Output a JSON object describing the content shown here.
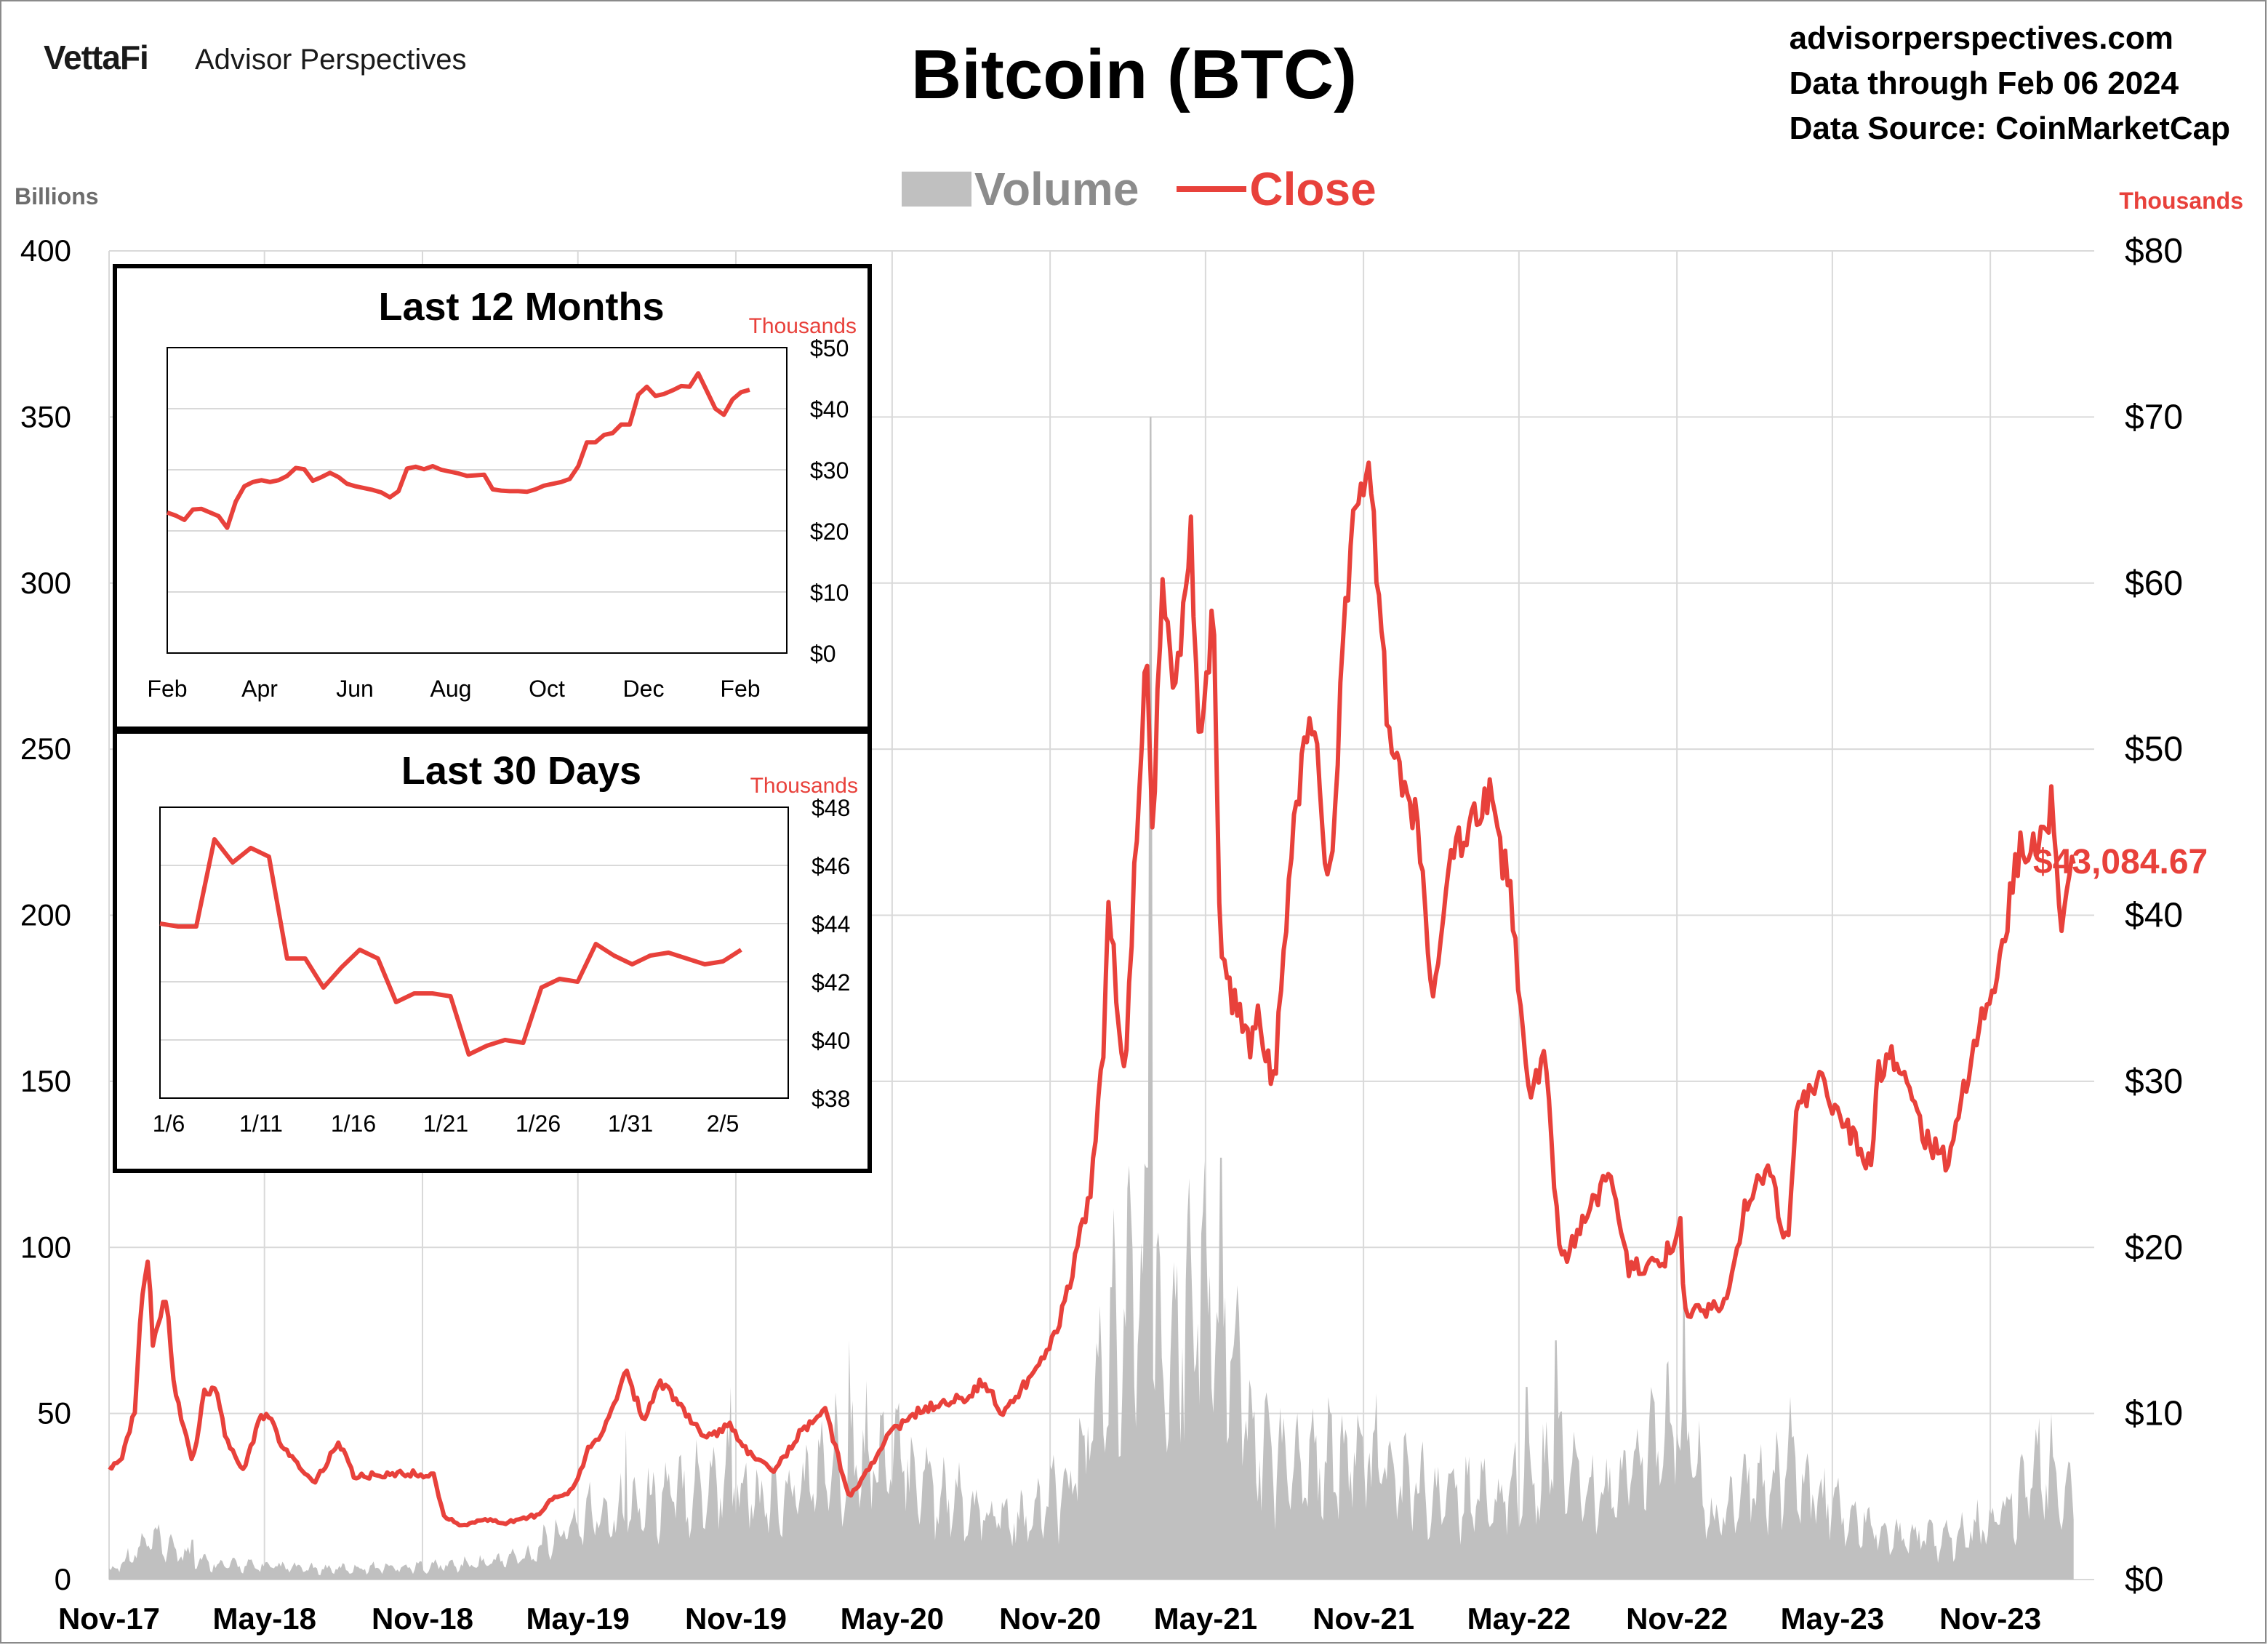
{
  "header": {
    "brand_logo": "VettaFi",
    "brand_name": "Advisor Perspectives",
    "title": "Bitcoin (BTC)",
    "source_lines": [
      "advisorperspectives.com",
      "Data through Feb 06 2024",
      "Data Source: CoinMarketCap"
    ]
  },
  "legend": {
    "volume_label": "Volume",
    "close_label": "Close"
  },
  "last_value_label": "$43,084.67",
  "colors": {
    "close": "#e8413b",
    "volume": "#c0c0c0",
    "grid": "#d9d9d9",
    "axis_text": "#000000"
  },
  "chart_data": [
    {
      "type": "area+line",
      "title": "Bitcoin (BTC)",
      "x_tick_labels": [
        "Nov-17",
        "May-18",
        "Nov-18",
        "May-19",
        "Nov-19",
        "May-20",
        "Nov-20",
        "May-21",
        "Nov-21",
        "May-22",
        "Nov-22",
        "May-23",
        "Nov-23"
      ],
      "x_start": "2017-11-01",
      "x_end": "2024-03-01",
      "left_axis": {
        "unit": "Billions",
        "ylim": [
          0,
          400
        ],
        "ticks": [
          "0",
          "50",
          "100",
          "150",
          "200",
          "250",
          "300",
          "350",
          "400"
        ]
      },
      "right_axis": {
        "unit": "Thousands",
        "ylim": [
          0,
          80
        ],
        "ticks": [
          "$0",
          "$10",
          "$20",
          "$30",
          "$40",
          "$50",
          "$60",
          "$70",
          "$80"
        ]
      },
      "series": [
        {
          "name": "Close",
          "axis": "right",
          "points": [
            [
              "2017-11-01",
              6.7
            ],
            [
              "2017-11-15",
              7.3
            ],
            [
              "2017-12-01",
              10.2
            ],
            [
              "2017-12-08",
              16.0
            ],
            [
              "2017-12-17",
              19.3
            ],
            [
              "2017-12-22",
              14.0
            ],
            [
              "2018-01-06",
              17.2
            ],
            [
              "2018-01-17",
              11.3
            ],
            [
              "2018-02-06",
              6.9
            ],
            [
              "2018-02-20",
              11.2
            ],
            [
              "2018-03-05",
              11.5
            ],
            [
              "2018-03-18",
              8.3
            ],
            [
              "2018-04-06",
              6.6
            ],
            [
              "2018-04-25",
              9.6
            ],
            [
              "2018-05-05",
              9.8
            ],
            [
              "2018-05-28",
              7.5
            ],
            [
              "2018-06-28",
              5.9
            ],
            [
              "2018-07-27",
              8.2
            ],
            [
              "2018-08-14",
              6.2
            ],
            [
              "2018-09-10",
              6.3
            ],
            [
              "2018-10-15",
              6.4
            ],
            [
              "2018-11-14",
              6.3
            ],
            [
              "2018-11-25",
              3.9
            ],
            [
              "2018-12-15",
              3.2
            ],
            [
              "2019-01-10",
              3.6
            ],
            [
              "2019-02-07",
              3.4
            ],
            [
              "2019-03-15",
              3.9
            ],
            [
              "2019-04-02",
              4.9
            ],
            [
              "2019-04-25",
              5.4
            ],
            [
              "2019-05-14",
              8.0
            ],
            [
              "2019-05-30",
              8.6
            ],
            [
              "2019-06-26",
              12.9
            ],
            [
              "2019-07-16",
              9.4
            ],
            [
              "2019-08-06",
              11.8
            ],
            [
              "2019-09-24",
              8.6
            ],
            [
              "2019-10-26",
              9.2
            ],
            [
              "2019-11-22",
              7.2
            ],
            [
              "2019-12-17",
              6.6
            ],
            [
              "2020-01-14",
              8.8
            ],
            [
              "2020-02-13",
              10.3
            ],
            [
              "2020-03-12",
              4.9
            ],
            [
              "2020-04-29",
              8.8
            ],
            [
              "2020-06-01",
              10.2
            ],
            [
              "2020-07-27",
              11.0
            ],
            [
              "2020-08-17",
              12.0
            ],
            [
              "2020-09-05",
              10.0
            ],
            [
              "2020-10-21",
              12.9
            ],
            [
              "2020-11-15",
              16.0
            ],
            [
              "2020-12-01",
              19.7
            ],
            [
              "2020-12-17",
              23.0
            ],
            [
              "2021-01-03",
              32.0
            ],
            [
              "2021-01-08",
              40.7
            ],
            [
              "2021-01-27",
              30.4
            ],
            [
              "2021-02-21",
              57.0
            ],
            [
              "2021-02-28",
              45.0
            ],
            [
              "2021-03-13",
              61.2
            ],
            [
              "2021-03-25",
              51.7
            ],
            [
              "2021-04-14",
              63.5
            ],
            [
              "2021-04-25",
              49.0
            ],
            [
              "2021-05-10",
              58.0
            ],
            [
              "2021-05-19",
              37.0
            ],
            [
              "2021-06-22",
              32.0
            ],
            [
              "2021-07-01",
              34.0
            ],
            [
              "2021-07-20",
              29.8
            ],
            [
              "2021-08-14",
              47.0
            ],
            [
              "2021-09-06",
              52.7
            ],
            [
              "2021-09-21",
              40.7
            ],
            [
              "2021-10-20",
              66.0
            ],
            [
              "2021-11-08",
              67.6
            ],
            [
              "2021-11-26",
              53.6
            ],
            [
              "2021-12-04",
              49.0
            ],
            [
              "2021-12-31",
              46.3
            ],
            [
              "2022-01-22",
              35.0
            ],
            [
              "2022-02-10",
              44.0
            ],
            [
              "2022-03-28",
              47.1
            ],
            [
              "2022-04-20",
              41.5
            ],
            [
              "2022-05-12",
              29.0
            ],
            [
              "2022-05-31",
              31.8
            ],
            [
              "2022-06-18",
              19.0
            ],
            [
              "2022-07-10",
              21.0
            ],
            [
              "2022-08-14",
              24.3
            ],
            [
              "2022-09-06",
              18.8
            ],
            [
              "2022-10-15",
              19.1
            ],
            [
              "2022-11-05",
              21.3
            ],
            [
              "2022-11-10",
              16.0
            ],
            [
              "2022-12-29",
              16.6
            ],
            [
              "2023-01-21",
              22.7
            ],
            [
              "2023-02-16",
              24.6
            ],
            [
              "2023-03-10",
              20.1
            ],
            [
              "2023-03-20",
              28.0
            ],
            [
              "2023-04-14",
              30.5
            ],
            [
              "2023-05-10",
              27.6
            ],
            [
              "2023-06-15",
              25.1
            ],
            [
              "2023-06-23",
              30.7
            ],
            [
              "2023-07-13",
              31.4
            ],
            [
              "2023-08-17",
              26.6
            ],
            [
              "2023-09-11",
              25.2
            ],
            [
              "2023-10-24",
              33.9
            ],
            [
              "2023-11-09",
              36.7
            ],
            [
              "2023-12-05",
              44.0
            ],
            [
              "2024-01-02",
              45.0
            ],
            [
              "2024-01-11",
              46.6
            ],
            [
              "2024-01-22",
              39.5
            ],
            [
              "2024-02-06",
              43.1
            ]
          ]
        },
        {
          "name": "Volume",
          "axis": "left",
          "points": [
            [
              "2017-11-01",
              3
            ],
            [
              "2017-12-20",
              15
            ],
            [
              "2018-03-01",
              6
            ],
            [
              "2018-07-01",
              4
            ],
            [
              "2018-11-01",
              5
            ],
            [
              "2019-01-01",
              6
            ],
            [
              "2019-03-01",
              9
            ],
            [
              "2019-05-15",
              25
            ],
            [
              "2019-07-01",
              28
            ],
            [
              "2019-10-25",
              40
            ],
            [
              "2019-12-01",
              28
            ],
            [
              "2020-01-15",
              35
            ],
            [
              "2020-03-12",
              50
            ],
            [
              "2020-05-15",
              45
            ],
            [
              "2020-08-01",
              25
            ],
            [
              "2020-10-01",
              22
            ],
            [
              "2020-12-01",
              40
            ],
            [
              "2021-01-10",
              90
            ],
            [
              "2021-02-20",
              115
            ],
            [
              "2021-03-20",
              70
            ],
            [
              "2021-04-18",
              120
            ],
            [
              "2021-05-15",
              100
            ],
            [
              "2021-07-01",
              50
            ],
            [
              "2021-09-01",
              45
            ],
            [
              "2021-11-10",
              48
            ],
            [
              "2022-01-01",
              35
            ],
            [
              "2022-04-01",
              30
            ],
            [
              "2022-06-15",
              45
            ],
            [
              "2022-08-01",
              30
            ],
            [
              "2022-11-10",
              60
            ],
            [
              "2022-12-15",
              20
            ],
            [
              "2023-01-20",
              35
            ],
            [
              "2023-03-15",
              40
            ],
            [
              "2023-05-01",
              28
            ],
            [
              "2023-07-01",
              18
            ],
            [
              "2023-09-01",
              15
            ],
            [
              "2023-11-01",
              22
            ],
            [
              "2024-01-11",
              45
            ],
            [
              "2024-02-06",
              26
            ]
          ],
          "spikes": [
            [
              "2018-02-06",
              12
            ],
            [
              "2019-06-26",
              45
            ],
            [
              "2019-10-26",
              58
            ],
            [
              "2020-03-12",
              72
            ],
            [
              "2021-01-11",
              88
            ],
            [
              "2021-02-22",
              124
            ],
            [
              "2021-02-26",
              350
            ],
            [
              "2021-05-19",
              127
            ],
            [
              "2022-05-10",
              58
            ],
            [
              "2022-06-13",
              72
            ],
            [
              "2022-11-09",
              103
            ],
            [
              "2023-03-13",
              55
            ],
            [
              "2024-01-11",
              50
            ]
          ]
        }
      ]
    },
    {
      "type": "line",
      "title": "Last 12 Months",
      "axis_unit": "Thousands",
      "x_tick_labels": [
        "Feb",
        "Apr",
        "Jun",
        "Aug",
        "Oct",
        "Dec",
        "Feb"
      ],
      "ylim": [
        0,
        50
      ],
      "y_ticks": [
        "$0",
        "$10",
        "$20",
        "$30",
        "$40",
        "$50"
      ],
      "series": [
        {
          "name": "Close",
          "values": [
            23.0,
            22.5,
            21.8,
            23.5,
            23.6,
            23.0,
            22.4,
            20.5,
            24.8,
            27.3,
            28.0,
            28.3,
            28.0,
            28.3,
            29.0,
            30.3,
            30.1,
            28.2,
            28.8,
            29.5,
            28.8,
            27.7,
            27.3,
            27.0,
            26.7,
            26.3,
            25.5,
            26.5,
            30.2,
            30.5,
            30.1,
            30.6,
            30.0,
            29.7,
            29.4,
            29.0,
            29.1,
            29.2,
            26.8,
            26.6,
            26.5,
            26.5,
            26.4,
            26.8,
            27.4,
            27.7,
            28.0,
            28.5,
            30.6,
            34.5,
            34.5,
            35.7,
            36.0,
            37.4,
            37.4,
            42.3,
            43.6,
            42.1,
            42.4,
            43.0,
            43.7,
            43.6,
            45.8,
            42.9,
            40.0,
            39.0,
            41.5,
            42.7,
            43.1
          ]
        }
      ]
    },
    {
      "type": "line",
      "title": "Last 30 Days",
      "axis_unit": "Thousands",
      "x_tick_labels": [
        "1/6",
        "1/11",
        "1/16",
        "1/21",
        "1/26",
        "1/31",
        "2/5"
      ],
      "ylim": [
        38,
        48
      ],
      "y_ticks": [
        "$38",
        "$40",
        "$42",
        "$44",
        "$46",
        "$48"
      ],
      "series": [
        {
          "name": "Close",
          "values": [
            44.0,
            43.9,
            43.9,
            46.9,
            46.1,
            46.6,
            46.3,
            42.8,
            42.8,
            41.8,
            42.5,
            43.1,
            42.8,
            41.3,
            41.6,
            41.6,
            41.5,
            39.5,
            39.8,
            40.0,
            39.9,
            41.8,
            42.1,
            42.0,
            43.3,
            42.9,
            42.6,
            42.9,
            43.0,
            42.8,
            42.6,
            42.7,
            43.1
          ]
        }
      ]
    }
  ]
}
